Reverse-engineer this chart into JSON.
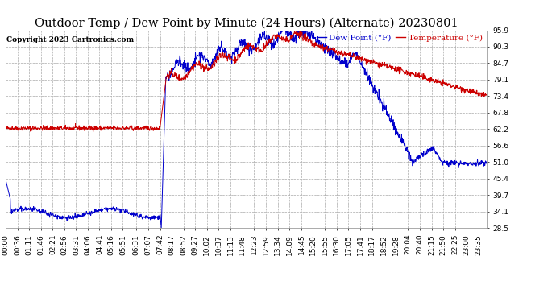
{
  "title": "Outdoor Temp / Dew Point by Minute (24 Hours) (Alternate) 20230801",
  "copyright": "Copyright 2023 Cartronics.com",
  "legend_dew": "Dew Point (°F)",
  "legend_temp": "Temperature (°F)",
  "yticks": [
    28.5,
    34.1,
    39.7,
    45.4,
    51.0,
    56.6,
    62.2,
    67.8,
    73.4,
    79.1,
    84.7,
    90.3,
    95.9
  ],
  "xtick_labels": [
    "00:00",
    "00:36",
    "01:11",
    "01:46",
    "02:21",
    "02:56",
    "03:31",
    "04:06",
    "04:41",
    "05:16",
    "05:51",
    "06:31",
    "07:07",
    "07:42",
    "08:17",
    "08:52",
    "09:27",
    "10:02",
    "10:37",
    "11:13",
    "11:48",
    "12:23",
    "12:59",
    "13:34",
    "14:09",
    "14:45",
    "15:20",
    "15:55",
    "16:30",
    "17:05",
    "17:41",
    "18:17",
    "18:52",
    "19:28",
    "20:04",
    "20:40",
    "21:15",
    "21:50",
    "22:25",
    "23:00",
    "23:35"
  ],
  "ymin": 28.5,
  "ymax": 95.9,
  "temp_color": "#cc0000",
  "dew_color": "#0000cc",
  "grid_color": "#aaaaaa",
  "background_color": "#ffffff",
  "title_fontsize": 10.5,
  "label_fontsize": 6.5,
  "legend_fontsize": 7.5,
  "copyright_fontsize": 6.5
}
